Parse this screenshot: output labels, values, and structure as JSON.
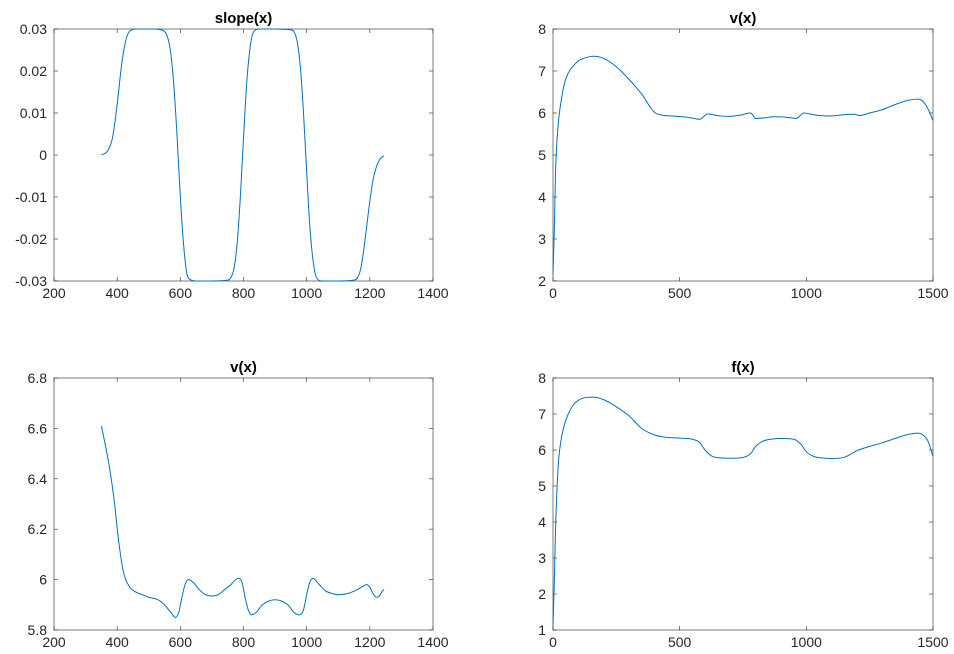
{
  "chart_data": [
    {
      "type": "line",
      "title": "slope(x)",
      "xlabel": "",
      "ylabel": "",
      "xlim": [
        200,
        1400
      ],
      "ylim": [
        -0.03,
        0.03
      ],
      "xticks": [
        200,
        400,
        600,
        800,
        1000,
        1200,
        1400
      ],
      "yticks": [
        -0.03,
        -0.02,
        -0.01,
        0,
        0.01,
        0.02,
        0.03
      ],
      "xtick_labels": [
        "200",
        "400",
        "600",
        "800",
        "1000",
        "1200",
        "1400"
      ],
      "ytick_labels": [
        "-0.03",
        "-0.02",
        "-0.01",
        "0",
        "0.01",
        "0.02",
        "0.03"
      ],
      "grid": false,
      "color": "#0072BD",
      "series": [
        {
          "x": [
            350,
            370,
            385,
            400,
            415,
            430,
            445,
            460,
            480,
            500,
            520,
            540,
            550,
            560,
            570,
            580,
            590,
            600,
            610,
            620,
            630,
            650,
            700,
            750,
            760,
            770,
            780,
            790,
            800,
            810,
            820,
            830,
            850,
            900,
            950,
            960,
            970,
            980,
            990,
            1000,
            1010,
            1020,
            1030,
            1050,
            1100,
            1150,
            1160,
            1170,
            1180,
            1190,
            1200,
            1210,
            1220,
            1230,
            1240,
            1245
          ],
          "y": [
            0,
            0.001,
            0.004,
            0.012,
            0.022,
            0.028,
            0.0298,
            0.03,
            0.03,
            0.03,
            0.03,
            0.0298,
            0.0294,
            0.028,
            0.024,
            0.016,
            0.004,
            -0.01,
            -0.021,
            -0.028,
            -0.0296,
            -0.03,
            -0.03,
            -0.0298,
            -0.0292,
            -0.027,
            -0.021,
            -0.01,
            0.004,
            0.017,
            0.025,
            0.029,
            0.03,
            0.03,
            0.0298,
            0.0293,
            0.027,
            0.021,
            0.01,
            -0.004,
            -0.017,
            -0.025,
            -0.029,
            -0.03,
            -0.03,
            -0.0298,
            -0.0293,
            -0.0275,
            -0.023,
            -0.017,
            -0.011,
            -0.006,
            -0.003,
            -0.0012,
            -0.0004,
            -0.0002
          ]
        }
      ]
    },
    {
      "type": "line",
      "title": "v(x)",
      "xlabel": "",
      "ylabel": "",
      "xlim": [
        0,
        1500
      ],
      "ylim": [
        2,
        8
      ],
      "xticks": [
        0,
        500,
        1000,
        1500
      ],
      "yticks": [
        2,
        3,
        4,
        5,
        6,
        7,
        8
      ],
      "xtick_labels": [
        "0",
        "500",
        "1000",
        "1500"
      ],
      "ytick_labels": [
        "2",
        "3",
        "4",
        "5",
        "6",
        "7",
        "8"
      ],
      "grid": false,
      "color": "#0072BD",
      "series": [
        {
          "x": [
            0,
            5,
            10,
            20,
            30,
            45,
            60,
            80,
            100,
            130,
            160,
            200,
            250,
            300,
            350,
            400,
            430,
            470,
            530,
            580,
            610,
            630,
            660,
            700,
            740,
            780,
            800,
            830,
            870,
            920,
            960,
            990,
            1020,
            1050,
            1100,
            1150,
            1190,
            1210,
            1250,
            1300,
            1350,
            1400,
            1440,
            1460,
            1480,
            1500
          ],
          "y": [
            2.15,
            3.2,
            4.6,
            5.7,
            6.2,
            6.7,
            6.95,
            7.12,
            7.24,
            7.32,
            7.35,
            7.3,
            7.1,
            6.8,
            6.45,
            6.02,
            5.95,
            5.93,
            5.9,
            5.85,
            5.98,
            5.96,
            5.93,
            5.92,
            5.95,
            6.0,
            5.87,
            5.88,
            5.91,
            5.9,
            5.87,
            6.0,
            5.97,
            5.94,
            5.93,
            5.96,
            5.97,
            5.94,
            6.0,
            6.08,
            6.2,
            6.3,
            6.33,
            6.28,
            6.1,
            5.82
          ]
        }
      ]
    },
    {
      "type": "line",
      "title": "v(x)",
      "xlabel": "",
      "ylabel": "",
      "xlim": [
        200,
        1400
      ],
      "ylim": [
        5.8,
        6.8
      ],
      "xticks": [
        200,
        400,
        600,
        800,
        1000,
        1200,
        1400
      ],
      "yticks": [
        5.8,
        6.0,
        6.2,
        6.4,
        6.6,
        6.8
      ],
      "xtick_labels": [
        "200",
        "400",
        "600",
        "800",
        "1000",
        "1200",
        "1400"
      ],
      "ytick_labels": [
        "5.8",
        "6",
        "6.2",
        "6.4",
        "6.6",
        "6.8"
      ],
      "grid": false,
      "color": "#0072BD",
      "series": [
        {
          "x": [
            350,
            360,
            375,
            390,
            405,
            420,
            440,
            460,
            480,
            500,
            530,
            550,
            570,
            585,
            595,
            605,
            615,
            625,
            640,
            660,
            680,
            700,
            720,
            740,
            760,
            775,
            785,
            795,
            805,
            815,
            825,
            840,
            860,
            880,
            900,
            920,
            940,
            960,
            975,
            990,
            1000,
            1010,
            1020,
            1030,
            1040,
            1060,
            1080,
            1100,
            1130,
            1160,
            1180,
            1190,
            1200,
            1210,
            1220,
            1230,
            1240,
            1245
          ],
          "y": [
            6.61,
            6.55,
            6.45,
            6.32,
            6.15,
            6.03,
            5.97,
            5.95,
            5.94,
            5.93,
            5.92,
            5.9,
            5.87,
            5.85,
            5.87,
            5.93,
            5.98,
            6.0,
            5.99,
            5.96,
            5.94,
            5.935,
            5.94,
            5.96,
            5.98,
            6.0,
            6.005,
            5.99,
            5.93,
            5.88,
            5.86,
            5.87,
            5.9,
            5.915,
            5.92,
            5.915,
            5.9,
            5.87,
            5.86,
            5.88,
            5.94,
            5.99,
            6.005,
            5.995,
            5.98,
            5.955,
            5.945,
            5.94,
            5.945,
            5.96,
            5.975,
            5.98,
            5.97,
            5.945,
            5.93,
            5.935,
            5.955,
            5.96
          ]
        }
      ]
    },
    {
      "type": "line",
      "title": "f(x)",
      "xlabel": "",
      "ylabel": "",
      "xlim": [
        0,
        1500
      ],
      "ylim": [
        1,
        8
      ],
      "xticks": [
        0,
        500,
        1000,
        1500
      ],
      "yticks": [
        1,
        2,
        3,
        4,
        5,
        6,
        7,
        8
      ],
      "xtick_labels": [
        "0",
        "500",
        "1000",
        "1500"
      ],
      "ytick_labels": [
        "1",
        "2",
        "3",
        "4",
        "5",
        "6",
        "7",
        "8"
      ],
      "grid": false,
      "color": "#0072BD",
      "series": [
        {
          "x": [
            0,
            5,
            10,
            20,
            30,
            45,
            60,
            80,
            100,
            130,
            160,
            200,
            250,
            300,
            350,
            400,
            450,
            500,
            550,
            580,
            600,
            630,
            660,
            700,
            740,
            780,
            800,
            830,
            860,
            900,
            950,
            980,
            1000,
            1030,
            1060,
            1100,
            1150,
            1200,
            1250,
            1300,
            1350,
            1400,
            1440,
            1460,
            1480,
            1500
          ],
          "y": [
            1.1,
            2.3,
            3.8,
            5.5,
            6.2,
            6.7,
            7.0,
            7.25,
            7.38,
            7.46,
            7.47,
            7.4,
            7.2,
            6.95,
            6.6,
            6.42,
            6.35,
            6.33,
            6.3,
            6.2,
            6.0,
            5.82,
            5.78,
            5.77,
            5.78,
            5.9,
            6.1,
            6.25,
            6.3,
            6.32,
            6.3,
            6.15,
            5.95,
            5.82,
            5.78,
            5.76,
            5.8,
            5.98,
            6.1,
            6.2,
            6.32,
            6.43,
            6.47,
            6.42,
            6.25,
            5.82
          ]
        }
      ]
    }
  ]
}
